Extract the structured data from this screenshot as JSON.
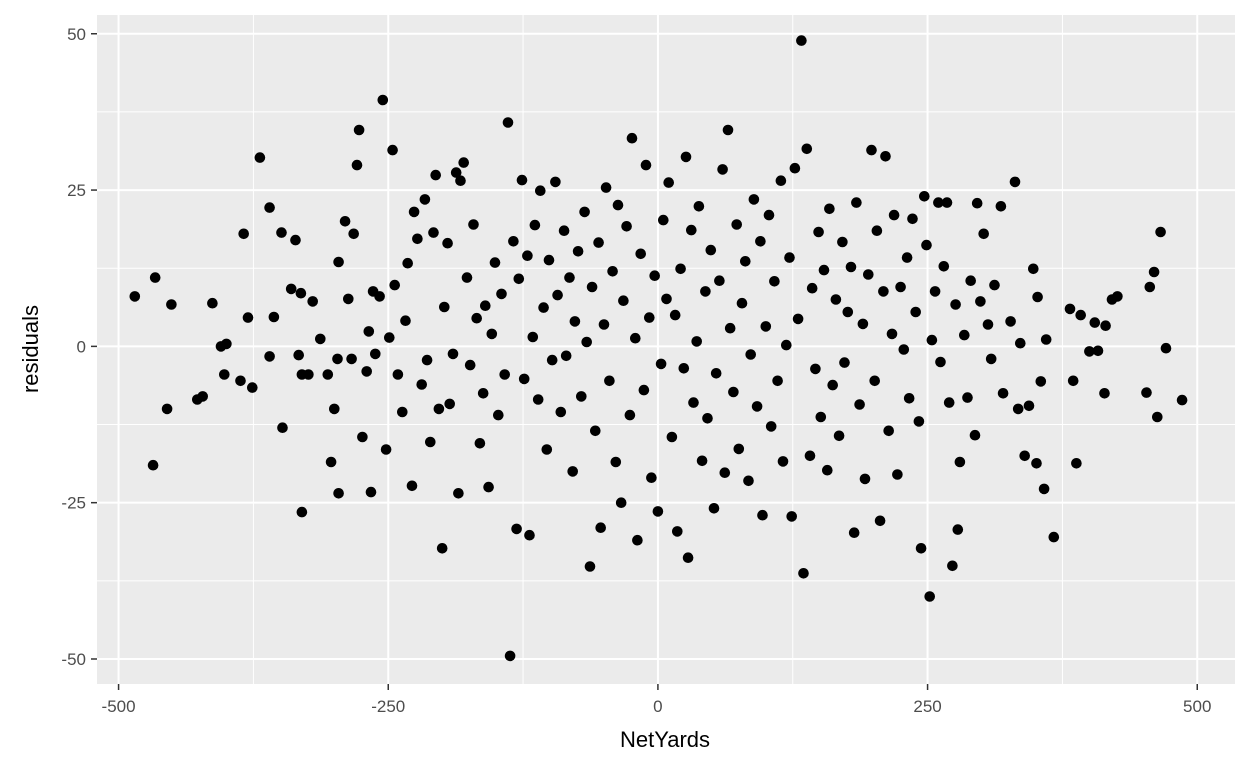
{
  "chart_data": {
    "type": "scatter",
    "title": "",
    "xlabel": "NetYards",
    "ylabel": "residuals",
    "xlim": [
      -520,
      535
    ],
    "ylim": [
      -54,
      53
    ],
    "x_ticks": [
      -500,
      -250,
      0,
      250,
      500
    ],
    "x_tick_labels": [
      "-500",
      "-250",
      "0",
      "250",
      "500"
    ],
    "y_ticks": [
      -50,
      -25,
      0,
      25,
      50
    ],
    "y_tick_labels": [
      "-50",
      "-25",
      "0",
      "25",
      "50"
    ],
    "grid": true,
    "legend": "none",
    "point_color": "#000000",
    "panel_background": "#ebebeb",
    "grid_color": "#ffffff",
    "points": [
      [
        -485,
        8
      ],
      [
        -466,
        11
      ],
      [
        -468,
        -19
      ],
      [
        -455,
        -10
      ],
      [
        -451,
        6.7
      ],
      [
        -427,
        -8.5
      ],
      [
        -422,
        -8
      ],
      [
        -413,
        6.9
      ],
      [
        -405,
        0
      ],
      [
        -400,
        0.4
      ],
      [
        -402,
        -4.5
      ],
      [
        -387,
        -5.5
      ],
      [
        -384,
        18
      ],
      [
        -380,
        4.6
      ],
      [
        -376,
        -6.6
      ],
      [
        -369,
        30.2
      ],
      [
        -360,
        22.2
      ],
      [
        -360,
        -1.6
      ],
      [
        -356,
        4.7
      ],
      [
        -349,
        18.2
      ],
      [
        -348,
        -13
      ],
      [
        -340,
        9.2
      ],
      [
        -336,
        17
      ],
      [
        -333,
        -1.4
      ],
      [
        -331,
        8.5
      ],
      [
        -330,
        -4.5
      ],
      [
        -330,
        -26.5
      ],
      [
        -324,
        -4.5
      ],
      [
        -320,
        7.2
      ],
      [
        -313,
        1.2
      ],
      [
        -306,
        -4.5
      ],
      [
        -303,
        -18.5
      ],
      [
        -300,
        -10
      ],
      [
        -297,
        -2
      ],
      [
        -296,
        -23.5
      ],
      [
        -296,
        13.5
      ],
      [
        -290,
        20
      ],
      [
        -287,
        7.6
      ],
      [
        -284,
        -2
      ],
      [
        -282,
        18
      ],
      [
        -279,
        29
      ],
      [
        -277,
        34.6
      ],
      [
        -274,
        -14.5
      ],
      [
        -270,
        -4
      ],
      [
        -268,
        2.4
      ],
      [
        -266,
        -23.3
      ],
      [
        -264,
        8.8
      ],
      [
        -262,
        -1.2
      ],
      [
        -258,
        8
      ],
      [
        -255,
        39.4
      ],
      [
        -252,
        -16.5
      ],
      [
        -249,
        1.4
      ],
      [
        -246,
        31.4
      ],
      [
        -244,
        9.8
      ],
      [
        -241,
        -4.5
      ],
      [
        -237,
        -10.5
      ],
      [
        -234,
        4.1
      ],
      [
        -232,
        13.3
      ],
      [
        -228,
        -22.3
      ],
      [
        -226,
        21.5
      ],
      [
        -223,
        17.2
      ],
      [
        -219,
        -6.1
      ],
      [
        -216,
        23.5
      ],
      [
        -214,
        -2.2
      ],
      [
        -211,
        -15.3
      ],
      [
        -208,
        18.2
      ],
      [
        -206,
        27.4
      ],
      [
        -203,
        -10
      ],
      [
        -200,
        -32.3
      ],
      [
        -198,
        6.3
      ],
      [
        -195,
        16.5
      ],
      [
        -193,
        -9.2
      ],
      [
        -190,
        -1.2
      ],
      [
        -187,
        27.8
      ],
      [
        -185,
        -23.5
      ],
      [
        -183,
        26.5
      ],
      [
        -180,
        29.4
      ],
      [
        -177,
        11
      ],
      [
        -174,
        -3
      ],
      [
        -171,
        19.5
      ],
      [
        -168,
        4.5
      ],
      [
        -165,
        -15.5
      ],
      [
        -162,
        -7.5
      ],
      [
        -160,
        6.5
      ],
      [
        -157,
        -22.5
      ],
      [
        -154,
        2
      ],
      [
        -151,
        13.4
      ],
      [
        -148,
        -11
      ],
      [
        -145,
        8.4
      ],
      [
        -142,
        -4.5
      ],
      [
        -139,
        35.8
      ],
      [
        -137,
        -49.5
      ],
      [
        -134,
        16.8
      ],
      [
        -131,
        -29.2
      ],
      [
        -129,
        10.8
      ],
      [
        -126,
        26.6
      ],
      [
        -124,
        -5.2
      ],
      [
        -121,
        14.5
      ],
      [
        -119,
        -30.2
      ],
      [
        -116,
        1.5
      ],
      [
        -114,
        19.4
      ],
      [
        -111,
        -8.5
      ],
      [
        -109,
        24.9
      ],
      [
        -106,
        6.2
      ],
      [
        -103,
        -16.5
      ],
      [
        -101,
        13.8
      ],
      [
        -98,
        -2.2
      ],
      [
        -95,
        26.3
      ],
      [
        -93,
        8.2
      ],
      [
        -90,
        -10.5
      ],
      [
        -87,
        18.5
      ],
      [
        -85,
        -1.5
      ],
      [
        -82,
        11
      ],
      [
        -79,
        -20
      ],
      [
        -77,
        4
      ],
      [
        -74,
        15.2
      ],
      [
        -71,
        -8
      ],
      [
        -68,
        21.5
      ],
      [
        -66,
        0.7
      ],
      [
        -63,
        -35.2
      ],
      [
        -61,
        9.5
      ],
      [
        -58,
        -13.5
      ],
      [
        -55,
        16.6
      ],
      [
        -53,
        -29
      ],
      [
        -50,
        3.5
      ],
      [
        -48,
        25.4
      ],
      [
        -45,
        -5.5
      ],
      [
        -42,
        12
      ],
      [
        -39,
        -18.5
      ],
      [
        -37,
        22.6
      ],
      [
        -34,
        -25
      ],
      [
        -32,
        7.3
      ],
      [
        -29,
        19.2
      ],
      [
        -26,
        -11
      ],
      [
        -24,
        33.3
      ],
      [
        -21,
        1.3
      ],
      [
        -19,
        -31
      ],
      [
        -16,
        14.8
      ],
      [
        -13,
        -7
      ],
      [
        -11,
        29
      ],
      [
        -8,
        4.6
      ],
      [
        -6,
        -21
      ],
      [
        -3,
        11.3
      ],
      [
        0,
        -26.4
      ],
      [
        3,
        -2.8
      ],
      [
        5,
        20.2
      ],
      [
        8,
        7.6
      ],
      [
        10,
        26.2
      ],
      [
        13,
        -14.5
      ],
      [
        16,
        5
      ],
      [
        18,
        -29.6
      ],
      [
        21,
        12.4
      ],
      [
        24,
        -3.5
      ],
      [
        26,
        30.3
      ],
      [
        28,
        -33.8
      ],
      [
        31,
        18.6
      ],
      [
        33,
        -9
      ],
      [
        36,
        0.8
      ],
      [
        38,
        22.4
      ],
      [
        41,
        -18.3
      ],
      [
        44,
        8.8
      ],
      [
        46,
        -11.5
      ],
      [
        49,
        15.4
      ],
      [
        52,
        -25.9
      ],
      [
        54,
        -4.3
      ],
      [
        57,
        10.5
      ],
      [
        60,
        28.3
      ],
      [
        62,
        -20.2
      ],
      [
        65,
        34.6
      ],
      [
        67,
        2.9
      ],
      [
        70,
        -7.3
      ],
      [
        73,
        19.5
      ],
      [
        75,
        -16.4
      ],
      [
        78,
        6.9
      ],
      [
        81,
        13.6
      ],
      [
        84,
        -21.5
      ],
      [
        86,
        -1.3
      ],
      [
        89,
        23.5
      ],
      [
        92,
        -9.6
      ],
      [
        95,
        16.8
      ],
      [
        97,
        -27
      ],
      [
        100,
        3.2
      ],
      [
        103,
        21
      ],
      [
        105,
        -12.8
      ],
      [
        108,
        10.4
      ],
      [
        111,
        -5.5
      ],
      [
        114,
        26.5
      ],
      [
        116,
        -18.4
      ],
      [
        119,
        0.2
      ],
      [
        122,
        14.2
      ],
      [
        124,
        -27.2
      ],
      [
        127,
        28.5
      ],
      [
        130,
        4.4
      ],
      [
        133,
        48.9
      ],
      [
        135,
        -36.3
      ],
      [
        138,
        31.6
      ],
      [
        141,
        -17.5
      ],
      [
        143,
        9.3
      ],
      [
        146,
        -3.6
      ],
      [
        149,
        18.3
      ],
      [
        151,
        -11.3
      ],
      [
        154,
        12.2
      ],
      [
        157,
        -19.8
      ],
      [
        159,
        22
      ],
      [
        162,
        -6.2
      ],
      [
        165,
        7.5
      ],
      [
        168,
        -14.3
      ],
      [
        171,
        16.7
      ],
      [
        173,
        -2.6
      ],
      [
        176,
        5.5
      ],
      [
        179,
        12.7
      ],
      [
        182,
        -29.8
      ],
      [
        184,
        23
      ],
      [
        187,
        -9.3
      ],
      [
        190,
        3.6
      ],
      [
        192,
        -21.2
      ],
      [
        195,
        11.5
      ],
      [
        198,
        31.4
      ],
      [
        201,
        -5.5
      ],
      [
        203,
        18.5
      ],
      [
        206,
        -27.9
      ],
      [
        209,
        8.8
      ],
      [
        211,
        30.4
      ],
      [
        214,
        -13.5
      ],
      [
        217,
        2
      ],
      [
        219,
        21
      ],
      [
        222,
        -20.5
      ],
      [
        225,
        9.5
      ],
      [
        228,
        -0.5
      ],
      [
        231,
        14.2
      ],
      [
        233,
        -8.3
      ],
      [
        236,
        20.4
      ],
      [
        239,
        5.5
      ],
      [
        242,
        -12
      ],
      [
        244,
        -32.3
      ],
      [
        247,
        24
      ],
      [
        249,
        16.2
      ],
      [
        252,
        -40
      ],
      [
        254,
        1
      ],
      [
        257,
        8.8
      ],
      [
        260,
        23
      ],
      [
        262,
        -2.5
      ],
      [
        265,
        12.8
      ],
      [
        268,
        23
      ],
      [
        270,
        -9
      ],
      [
        273,
        -35.1
      ],
      [
        276,
        6.7
      ],
      [
        278,
        -29.3
      ],
      [
        280,
        -18.5
      ],
      [
        284,
        1.8
      ],
      [
        287,
        -8.2
      ],
      [
        290,
        10.5
      ],
      [
        294,
        -14.2
      ],
      [
        296,
        22.9
      ],
      [
        299,
        7.2
      ],
      [
        302,
        18
      ],
      [
        306,
        3.5
      ],
      [
        309,
        -2
      ],
      [
        312,
        9.8
      ],
      [
        318,
        22.4
      ],
      [
        320,
        -7.5
      ],
      [
        327,
        4
      ],
      [
        331,
        26.3
      ],
      [
        334,
        -10
      ],
      [
        336,
        0.5
      ],
      [
        340,
        -17.5
      ],
      [
        344,
        -9.5
      ],
      [
        348,
        12.4
      ],
      [
        351,
        -18.7
      ],
      [
        352,
        7.9
      ],
      [
        355,
        -5.6
      ],
      [
        358,
        -22.8
      ],
      [
        360,
        1.1
      ],
      [
        367,
        -30.5
      ],
      [
        382,
        6
      ],
      [
        385,
        -5.5
      ],
      [
        388,
        -18.7
      ],
      [
        392,
        5
      ],
      [
        400,
        -0.8
      ],
      [
        405,
        3.8
      ],
      [
        408,
        -0.7
      ],
      [
        414,
        -7.5
      ],
      [
        415,
        3.3
      ],
      [
        421,
        7.5
      ],
      [
        426,
        8
      ],
      [
        453,
        -7.4
      ],
      [
        456,
        9.5
      ],
      [
        460,
        11.9
      ],
      [
        463,
        -11.3
      ],
      [
        466,
        18.3
      ],
      [
        471,
        -0.3
      ],
      [
        486,
        -8.6
      ]
    ]
  }
}
